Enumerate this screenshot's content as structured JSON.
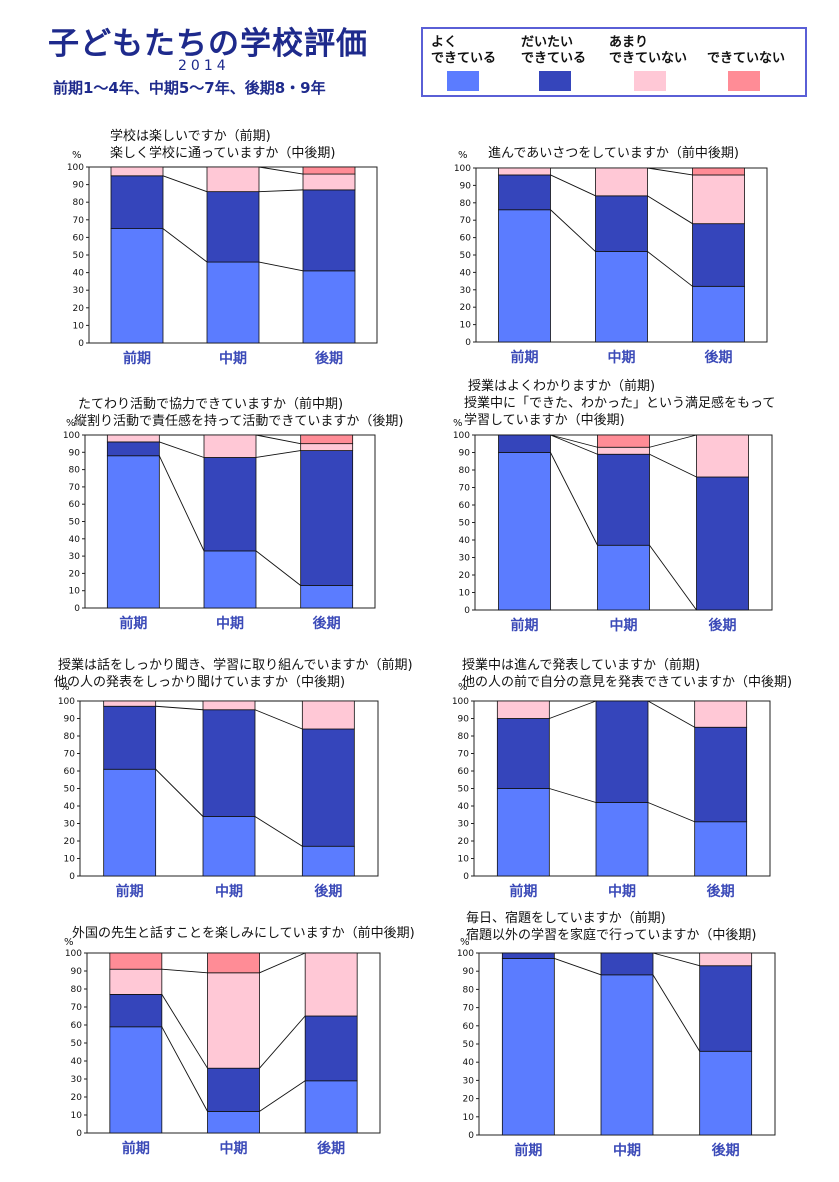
{
  "header": {
    "title": "子どもたちの学校評価",
    "year": "2014",
    "subtitle": "前期1～4年、中期5～7年、後期8・9年"
  },
  "legend": [
    {
      "label": "よく\nできている",
      "color": "#5b7cff"
    },
    {
      "label": "だいたい\nできている",
      "color": "#3545bb"
    },
    {
      "label": "あまり\nできていない",
      "color": "#ffc8d6"
    },
    {
      "label": "できていない",
      "color": "#ff8c96"
    }
  ],
  "chart_data": [
    {
      "type": "bar",
      "stacked": true,
      "title_lines": [
        "学校は楽しいですか（前期)",
        "楽しく学校に通っていますか（中後期)"
      ],
      "y_unit": "%",
      "ylim": [
        0,
        100
      ],
      "yticks": [
        0,
        10,
        20,
        30,
        40,
        50,
        60,
        70,
        80,
        90,
        100
      ],
      "categories": [
        "前期",
        "中期",
        "後期"
      ],
      "series": [
        {
          "name": "よく できている",
          "values": [
            65,
            46,
            41
          ]
        },
        {
          "name": "だいたい できている",
          "values": [
            30,
            40,
            46
          ]
        },
        {
          "name": "あまり できていない",
          "values": [
            5,
            14,
            9
          ]
        },
        {
          "name": "できていない",
          "values": [
            0,
            0,
            4
          ]
        }
      ]
    },
    {
      "type": "bar",
      "stacked": true,
      "title_lines": [
        "進んであいさつをしていますか（前中後期)"
      ],
      "y_unit": "%",
      "ylim": [
        0,
        100
      ],
      "yticks": [
        0,
        10,
        20,
        30,
        40,
        50,
        60,
        70,
        80,
        90,
        100
      ],
      "categories": [
        "前期",
        "中期",
        "後期"
      ],
      "series": [
        {
          "name": "よく できている",
          "values": [
            76,
            52,
            32
          ]
        },
        {
          "name": "だいたい できている",
          "values": [
            20,
            32,
            36
          ]
        },
        {
          "name": "あまり できていない",
          "values": [
            4,
            16,
            28
          ]
        },
        {
          "name": "できていない",
          "values": [
            0,
            0,
            4
          ]
        }
      ]
    },
    {
      "type": "bar",
      "stacked": true,
      "title_lines": [
        "たてわり活動で協力できていますか（前中期)",
        "縦割り活動で責任感を持って活動できていますか（後期)"
      ],
      "y_unit": "%",
      "ylim": [
        0,
        100
      ],
      "yticks": [
        0,
        10,
        20,
        30,
        40,
        50,
        60,
        70,
        80,
        90,
        100
      ],
      "categories": [
        "前期",
        "中期",
        "後期"
      ],
      "series": [
        {
          "name": "よく できている",
          "values": [
            88,
            33,
            13
          ]
        },
        {
          "name": "だいたい できている",
          "values": [
            8,
            54,
            78
          ]
        },
        {
          "name": "あまり できていない",
          "values": [
            4,
            13,
            4
          ]
        },
        {
          "name": "できていない",
          "values": [
            0,
            0,
            5
          ]
        }
      ]
    },
    {
      "type": "bar",
      "stacked": true,
      "title_lines": [
        "授業はよくわかりますか（前期)",
        "授業中に「できた、わかった」という満足感をもって",
        "学習していますか（中後期)"
      ],
      "y_unit": "%",
      "ylim": [
        0,
        100
      ],
      "yticks": [
        0,
        10,
        20,
        30,
        40,
        50,
        60,
        70,
        80,
        90,
        100
      ],
      "categories": [
        "前期",
        "中期",
        "後期"
      ],
      "series": [
        {
          "name": "よく できている",
          "values": [
            90,
            37,
            0
          ]
        },
        {
          "name": "だいたい できている",
          "values": [
            10,
            52,
            76
          ]
        },
        {
          "name": "あまり できていない",
          "values": [
            0,
            4,
            24
          ]
        },
        {
          "name": "できていない",
          "values": [
            0,
            7,
            0
          ]
        }
      ]
    },
    {
      "type": "bar",
      "stacked": true,
      "title_lines": [
        "授業は話をしっかり聞き、学習に取り組んでいますか（前期)",
        "他の人の発表をしっかり聞けていますか（中後期)"
      ],
      "y_unit": "%",
      "ylim": [
        0,
        100
      ],
      "yticks": [
        0,
        10,
        20,
        30,
        40,
        50,
        60,
        70,
        80,
        90,
        100
      ],
      "categories": [
        "前期",
        "中期",
        "後期"
      ],
      "series": [
        {
          "name": "よく できている",
          "values": [
            61,
            34,
            17
          ]
        },
        {
          "name": "だいたい できている",
          "values": [
            36,
            61,
            67
          ]
        },
        {
          "name": "あまり できていない",
          "values": [
            3,
            5,
            16
          ]
        },
        {
          "name": "できていない",
          "values": [
            0,
            0,
            0
          ]
        }
      ]
    },
    {
      "type": "bar",
      "stacked": true,
      "title_lines": [
        "授業中は進んで発表していますか（前期)",
        "他の人の前で自分の意見を発表できていますか（中後期)"
      ],
      "y_unit": "%",
      "ylim": [
        0,
        100
      ],
      "yticks": [
        0,
        10,
        20,
        30,
        40,
        50,
        60,
        70,
        80,
        90,
        100
      ],
      "categories": [
        "前期",
        "中期",
        "後期"
      ],
      "series": [
        {
          "name": "よく できている",
          "values": [
            50,
            42,
            31
          ]
        },
        {
          "name": "だいたい できている",
          "values": [
            40,
            58,
            54
          ]
        },
        {
          "name": "あまり できていない",
          "values": [
            10,
            0,
            15
          ]
        },
        {
          "name": "できていない",
          "values": [
            0,
            0,
            0
          ]
        }
      ]
    },
    {
      "type": "bar",
      "stacked": true,
      "title_lines": [
        "外国の先生と話すことを楽しみにしていますか（前中後期)"
      ],
      "y_unit": "%",
      "ylim": [
        0,
        100
      ],
      "yticks": [
        0,
        10,
        20,
        30,
        40,
        50,
        60,
        70,
        80,
        90,
        100
      ],
      "categories": [
        "前期",
        "中期",
        "後期"
      ],
      "series": [
        {
          "name": "よく できている",
          "values": [
            59,
            12,
            29
          ]
        },
        {
          "name": "だいたい できている",
          "values": [
            18,
            24,
            36
          ]
        },
        {
          "name": "あまり できていない",
          "values": [
            14,
            53,
            35
          ]
        },
        {
          "name": "できていない",
          "values": [
            9,
            11,
            0
          ]
        }
      ]
    },
    {
      "type": "bar",
      "stacked": true,
      "title_lines": [
        "毎日、宿題をしていますか（前期)",
        "宿題以外の学習を家庭で行っていますか（中後期)"
      ],
      "y_unit": "%",
      "ylim": [
        0,
        100
      ],
      "yticks": [
        0,
        10,
        20,
        30,
        40,
        50,
        60,
        70,
        80,
        90,
        100
      ],
      "categories": [
        "前期",
        "中期",
        "後期"
      ],
      "series": [
        {
          "name": "よく できている",
          "values": [
            97,
            88,
            46
          ]
        },
        {
          "name": "だいたい できている",
          "values": [
            3,
            12,
            47
          ]
        },
        {
          "name": "あまり できていない",
          "values": [
            0,
            0,
            7
          ]
        },
        {
          "name": "できていない",
          "values": [
            0,
            0,
            0
          ]
        }
      ]
    }
  ]
}
